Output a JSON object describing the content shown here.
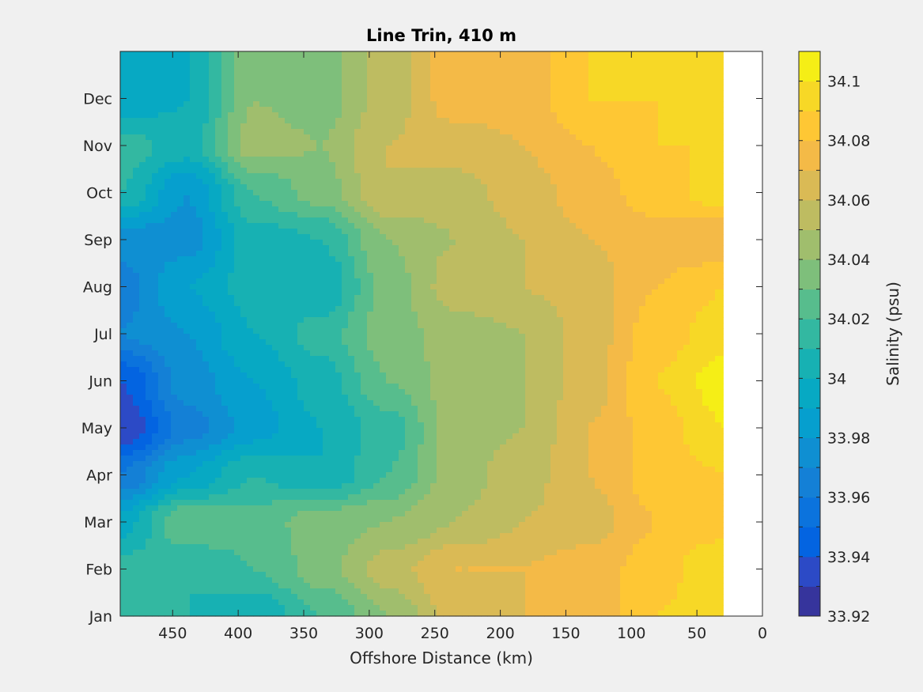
{
  "chart_data": {
    "type": "heatmap",
    "title": "Line Trin, 410 m",
    "xlabel": "Offshore Distance (km)",
    "ylabel": "",
    "xlim": [
      490,
      0
    ],
    "x_reversed": true,
    "x_ticks": [
      450,
      400,
      350,
      300,
      250,
      200,
      150,
      100,
      50,
      0
    ],
    "y_ticks": [
      "Jan",
      "Feb",
      "Mar",
      "Apr",
      "May",
      "Jun",
      "Jul",
      "Aug",
      "Sep",
      "Oct",
      "Nov",
      "Dec"
    ],
    "ylim": [
      1,
      13
    ],
    "colorbar": {
      "label": "Salinity (psu)",
      "range": [
        33.92,
        34.11
      ],
      "tick_values": [
        33.92,
        33.94,
        33.96,
        33.98,
        34.0,
        34.02,
        34.04,
        34.06,
        34.08,
        34.1
      ],
      "tick_labels": [
        "33.92",
        "33.94",
        "33.96",
        "33.98",
        "34",
        "34.02",
        "34.04",
        "34.06",
        "34.08",
        "34.1"
      ],
      "levels": 19,
      "colormap": "parula"
    },
    "data_x_extent": [
      490,
      30
    ],
    "grid_x_km": [
      490,
      440,
      390,
      340,
      290,
      240,
      190,
      140,
      90,
      30
    ],
    "grid_months": [
      "Jan",
      "Feb",
      "Mar",
      "Apr",
      "May",
      "Jun",
      "Jul",
      "Aug",
      "Sep",
      "Oct",
      "Nov",
      "Dec"
    ],
    "salinity_psu": [
      [
        34.01,
        34.01,
        34.0,
        34.02,
        34.04,
        34.065,
        34.07,
        34.07,
        34.09,
        34.095
      ],
      [
        34.015,
        34.01,
        34.02,
        34.035,
        34.055,
        34.07,
        34.07,
        34.075,
        34.085,
        34.1
      ],
      [
        33.995,
        34.03,
        34.025,
        34.035,
        34.04,
        34.05,
        34.06,
        34.065,
        34.08,
        34.085
      ],
      [
        33.96,
        33.99,
        34.01,
        34.0,
        34.02,
        34.045,
        34.055,
        34.07,
        34.085,
        34.09
      ],
      [
        33.93,
        33.965,
        33.985,
        34.0,
        34.015,
        34.045,
        34.05,
        34.07,
        34.085,
        34.1
      ],
      [
        33.94,
        33.975,
        33.99,
        34.005,
        34.03,
        34.045,
        34.05,
        34.065,
        34.09,
        34.105
      ],
      [
        33.97,
        33.98,
        34.0,
        34.015,
        34.035,
        34.045,
        34.05,
        34.065,
        34.085,
        34.095
      ],
      [
        33.965,
        33.99,
        34.005,
        34.0,
        34.035,
        34.055,
        34.06,
        34.065,
        34.08,
        34.09
      ],
      [
        33.975,
        33.975,
        34.005,
        34.01,
        34.04,
        34.05,
        34.06,
        34.07,
        34.075,
        34.07
      ],
      [
        34.01,
        33.98,
        34.02,
        34.035,
        34.06,
        34.055,
        34.065,
        34.075,
        34.085,
        34.095
      ],
      [
        34.015,
        34.005,
        34.045,
        34.04,
        34.06,
        34.065,
        34.07,
        34.08,
        34.09,
        34.09
      ],
      [
        33.99,
        34.0,
        34.04,
        34.035,
        34.055,
        34.075,
        34.075,
        34.09,
        34.09,
        34.09
      ]
    ]
  }
}
